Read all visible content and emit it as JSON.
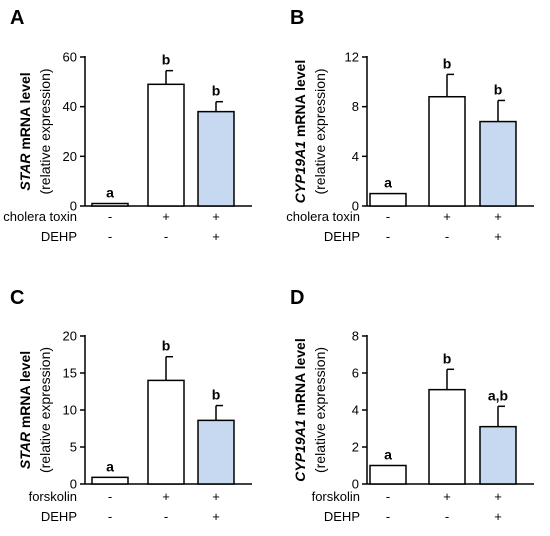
{
  "chart_data": [
    {
      "type": "bar",
      "panel": "A",
      "ylabel_gene": "STAR",
      "ylabel_main": " mRNA level",
      "ylabel_sub": "(relative expression)",
      "ylim": [
        0,
        60
      ],
      "yticks": [
        0,
        20,
        40,
        60
      ],
      "conditions": [
        {
          "label": "cholera toxin",
          "marks": [
            "-",
            "+",
            "+"
          ]
        },
        {
          "label": "DEHP",
          "marks": [
            "-",
            "-",
            "+"
          ]
        }
      ],
      "values": [
        1,
        49,
        38
      ],
      "errors": [
        0,
        5.5,
        4
      ],
      "significance": [
        "a",
        "b",
        "b"
      ],
      "colors": [
        "#ffffff",
        "#ffffff",
        "#c6d9f1"
      ]
    },
    {
      "type": "bar",
      "panel": "B",
      "ylabel_gene": "CYP19A1",
      "ylabel_main": " mRNA level",
      "ylabel_sub": "(relative expression)",
      "ylim": [
        0,
        12
      ],
      "yticks": [
        0,
        4,
        8,
        12
      ],
      "conditions": [
        {
          "label": "cholera toxin",
          "marks": [
            "-",
            "+",
            "+"
          ]
        },
        {
          "label": "DEHP",
          "marks": [
            "-",
            "-",
            "+"
          ]
        }
      ],
      "values": [
        1,
        8.8,
        6.8
      ],
      "errors": [
        0,
        1.8,
        1.7
      ],
      "significance": [
        "a",
        "b",
        "b"
      ],
      "colors": [
        "#ffffff",
        "#ffffff",
        "#c6d9f1"
      ]
    },
    {
      "type": "bar",
      "panel": "C",
      "ylabel_gene": "STAR",
      "ylabel_main": " mRNA level",
      "ylabel_sub": "(relative expression)",
      "ylim": [
        0,
        20
      ],
      "yticks": [
        0,
        5,
        10,
        15,
        20
      ],
      "conditions": [
        {
          "label": "forskolin",
          "marks": [
            "-",
            "+",
            "+"
          ]
        },
        {
          "label": "DEHP",
          "marks": [
            "-",
            "-",
            "+"
          ]
        }
      ],
      "values": [
        0.9,
        14,
        8.6
      ],
      "errors": [
        0,
        3.2,
        2
      ],
      "significance": [
        "a",
        "b",
        "b"
      ],
      "colors": [
        "#ffffff",
        "#ffffff",
        "#c6d9f1"
      ]
    },
    {
      "type": "bar",
      "panel": "D",
      "ylabel_gene": "CYP19A1",
      "ylabel_main": " mRNA level",
      "ylabel_sub": "(relative expression)",
      "ylim": [
        0,
        8
      ],
      "yticks": [
        0,
        2,
        4,
        6,
        8
      ],
      "conditions": [
        {
          "label": "forskolin",
          "marks": [
            "-",
            "+",
            "+"
          ]
        },
        {
          "label": "DEHP",
          "marks": [
            "-",
            "-",
            "+"
          ]
        }
      ],
      "values": [
        1,
        5.1,
        3.1
      ],
      "errors": [
        0,
        1.1,
        1.1
      ],
      "significance": [
        "a",
        "b",
        "a,b"
      ],
      "colors": [
        "#ffffff",
        "#ffffff",
        "#c6d9f1"
      ]
    }
  ]
}
